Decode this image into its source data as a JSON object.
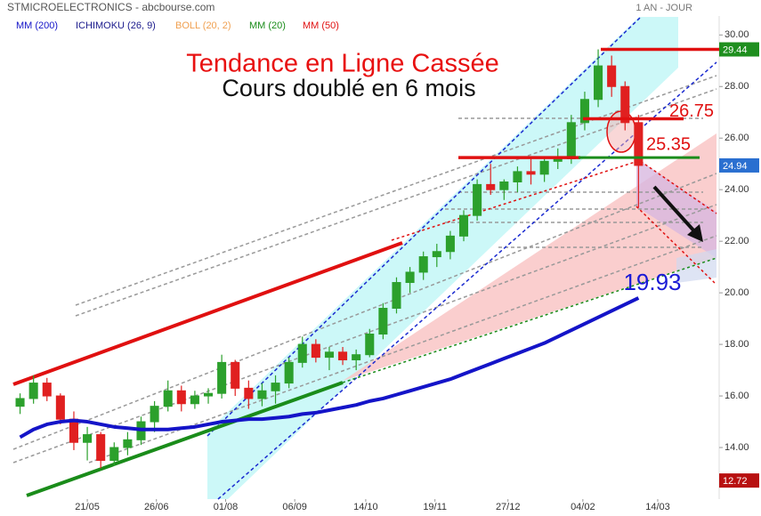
{
  "chart_data": {
    "type": "candlestick",
    "title": "STMICROELECTRONICS - abcbourse.com",
    "period": "1 AN - JOUR",
    "open": [
      15.6,
      15.9,
      16.5,
      16.0,
      15.1,
      14.2,
      14.5,
      13.5,
      14.0,
      14.3,
      15.0,
      15.6,
      16.2,
      15.7,
      16.0,
      16.1,
      17.3,
      16.3,
      15.9,
      16.2,
      16.5,
      17.3,
      18.0,
      17.5,
      17.7,
      17.4,
      17.6,
      18.4,
      19.4,
      20.4,
      20.8,
      21.4,
      21.6,
      22.2,
      23.0,
      24.2,
      24.0,
      24.3,
      24.7,
      24.6,
      25.1,
      25.2,
      26.6,
      27.5,
      28.8,
      28.0,
      26.6
    ],
    "high": [
      16.1,
      16.8,
      16.7,
      16.1,
      15.4,
      14.8,
      14.6,
      14.2,
      14.6,
      15.2,
      15.8,
      16.6,
      16.4,
      16.2,
      16.3,
      17.6,
      17.4,
      16.6,
      16.5,
      16.8,
      17.5,
      18.3,
      18.2,
      17.9,
      17.9,
      17.8,
      18.6,
      19.6,
      20.6,
      21.0,
      21.6,
      21.9,
      22.4,
      23.2,
      24.4,
      25.0,
      24.4,
      24.9,
      25.2,
      25.3,
      25.6,
      26.9,
      27.8,
      29.44,
      29.2,
      28.2,
      26.9
    ],
    "low": [
      15.3,
      15.7,
      15.8,
      14.9,
      13.9,
      13.5,
      13.2,
      13.3,
      13.7,
      14.1,
      14.6,
      15.4,
      15.4,
      15.5,
      15.7,
      15.9,
      16.0,
      15.5,
      15.6,
      15.7,
      16.3,
      17.1,
      17.3,
      17.0,
      17.2,
      17.0,
      17.5,
      18.2,
      19.2,
      20.0,
      20.5,
      21.0,
      21.3,
      22.0,
      22.8,
      23.8,
      23.6,
      23.9,
      24.2,
      24.3,
      24.8,
      25.0,
      26.3,
      27.2,
      27.6,
      26.3,
      23.3
    ],
    "close": [
      15.9,
      16.5,
      16.0,
      15.1,
      14.2,
      14.5,
      13.5,
      14.0,
      14.3,
      15.0,
      15.6,
      16.2,
      15.7,
      16.0,
      16.1,
      17.3,
      16.3,
      15.9,
      16.2,
      16.5,
      17.3,
      18.0,
      17.5,
      17.7,
      17.4,
      17.6,
      18.4,
      19.4,
      20.4,
      20.8,
      21.4,
      21.6,
      22.2,
      23.0,
      24.2,
      24.0,
      24.3,
      24.7,
      24.6,
      25.1,
      25.2,
      26.6,
      27.5,
      28.8,
      28.0,
      26.6,
      24.94
    ],
    "up_color": "#2ca02c",
    "down_color": "#e02020",
    "xlim": [
      -0.5,
      52
    ],
    "ylim": [
      12,
      30.7
    ],
    "xticks": [
      {
        "value": 5,
        "label": "21/05"
      },
      {
        "value": 10.14,
        "label": "26/06"
      },
      {
        "value": 15.29,
        "label": "01/08"
      },
      {
        "value": 20.43,
        "label": "06/09"
      },
      {
        "value": 25.71,
        "label": "14/10"
      },
      {
        "value": 30.86,
        "label": "19/11"
      },
      {
        "value": 36.29,
        "label": "27/12"
      },
      {
        "value": 41.86,
        "label": "04/02"
      },
      {
        "value": 47.43,
        "label": "14/03"
      }
    ],
    "yticks": [
      {
        "value": 14,
        "label": "14.00"
      },
      {
        "value": 16,
        "label": "16.00"
      },
      {
        "value": 18,
        "label": "18.00"
      },
      {
        "value": 20,
        "label": "20.00"
      },
      {
        "value": 22,
        "label": "22.00"
      },
      {
        "value": 24,
        "label": "24.00"
      },
      {
        "value": 26,
        "label": "26.00"
      },
      {
        "value": 28,
        "label": "28.00"
      },
      {
        "value": 30,
        "label": "30.00"
      }
    ],
    "indicators": [
      {
        "name": "MM (200)",
        "color": "#1414c8",
        "values": [
          14.4,
          14.7,
          14.9,
          15.0,
          15.05,
          15.0,
          14.9,
          14.8,
          14.75,
          14.7,
          14.7,
          14.7,
          14.75,
          14.8,
          14.9,
          15.0,
          15.05,
          15.1,
          15.1,
          15.15,
          15.2,
          15.3,
          15.35,
          15.45,
          15.55,
          15.65,
          15.8,
          15.9,
          16.05,
          16.2,
          16.35,
          16.5,
          16.65,
          16.85,
          17.05,
          17.25,
          17.45,
          17.65,
          17.85,
          18.05,
          18.3,
          18.55,
          18.8,
          19.05,
          19.3,
          19.55,
          19.8
        ]
      },
      {
        "name": "ICHIMOKU (26, 9)",
        "color": "#1a1a8c"
      },
      {
        "name": "BOLL (20, 2)",
        "color": "#f0a050"
      },
      {
        "name": "MM (20)",
        "color": "#1a8c1a"
      },
      {
        "name": "MM (50)",
        "color": "#e01010"
      }
    ],
    "price_markers": {
      "values": [
        29.44,
        24.94,
        12.72
      ],
      "colors": [
        "#1f8f1f",
        "#2a6fd0",
        "#b81010"
      ]
    },
    "levels": [
      {
        "value": 26.75,
        "color": "#e01010"
      },
      {
        "value": 25.35,
        "color": "#e01010"
      },
      {
        "value": 19.93,
        "color": "#1a1ad6"
      }
    ],
    "annotations": {
      "headline": "Tendance en Ligne Cassée",
      "subline": "Cours doublé en 6 mois"
    }
  }
}
